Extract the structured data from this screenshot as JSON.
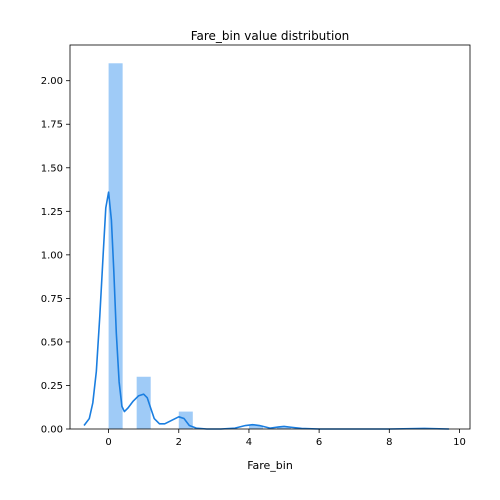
{
  "chart_data": {
    "type": "bar",
    "title": "Fare_bin value distribution",
    "xlabel": "Fare_bin",
    "ylabel": "",
    "xlim": [
      -1.1,
      10.3
    ],
    "ylim": [
      0,
      2.205
    ],
    "xticks": [
      0,
      2,
      4,
      6,
      8,
      10
    ],
    "yticks": [
      0.0,
      0.25,
      0.5,
      0.75,
      1.0,
      1.25,
      1.5,
      1.75,
      2.0
    ],
    "ytick_labels": [
      "0.00",
      "0.25",
      "0.50",
      "0.75",
      "1.00",
      "1.25",
      "1.50",
      "1.75",
      "2.00"
    ],
    "grid": false,
    "histogram": {
      "bin_edges": [
        0,
        0.4,
        0.8,
        1.2,
        1.6,
        2.0,
        2.4,
        2.8,
        3.2,
        3.6,
        4.0,
        4.4,
        4.8,
        5.2,
        5.6,
        6.0,
        6.4,
        6.8,
        7.2,
        7.6,
        8.0,
        8.4,
        8.8,
        9.2,
        9.6
      ],
      "values": [
        2.1,
        0,
        0.3,
        0,
        0,
        0.1,
        0,
        0,
        0,
        0,
        0.02,
        0,
        0.01,
        0,
        0,
        0,
        0,
        0,
        0,
        0,
        0,
        0,
        0.005,
        0
      ],
      "color": "#9fcbf7"
    },
    "kde": {
      "color": "#1a7ee0",
      "x": [
        -0.7,
        -0.55,
        -0.45,
        -0.35,
        -0.25,
        -0.15,
        -0.08,
        0.0,
        0.08,
        0.15,
        0.22,
        0.3,
        0.38,
        0.45,
        0.55,
        0.7,
        0.85,
        1.0,
        1.1,
        1.2,
        1.3,
        1.45,
        1.6,
        1.8,
        2.0,
        2.15,
        2.3,
        2.5,
        2.8,
        3.2,
        3.6,
        3.9,
        4.1,
        4.3,
        4.6,
        4.85,
        5.0,
        5.2,
        5.5,
        6.0,
        7.0,
        8.0,
        9.0,
        9.7
      ],
      "y": [
        0.02,
        0.06,
        0.15,
        0.33,
        0.65,
        1.02,
        1.27,
        1.36,
        1.2,
        0.9,
        0.55,
        0.27,
        0.13,
        0.1,
        0.12,
        0.16,
        0.19,
        0.2,
        0.18,
        0.12,
        0.06,
        0.03,
        0.03,
        0.05,
        0.07,
        0.06,
        0.02,
        0.005,
        0.0,
        0.0,
        0.005,
        0.02,
        0.025,
        0.02,
        0.005,
        0.012,
        0.015,
        0.01,
        0.003,
        0.0,
        0.0,
        0.0,
        0.003,
        0.0
      ]
    }
  }
}
